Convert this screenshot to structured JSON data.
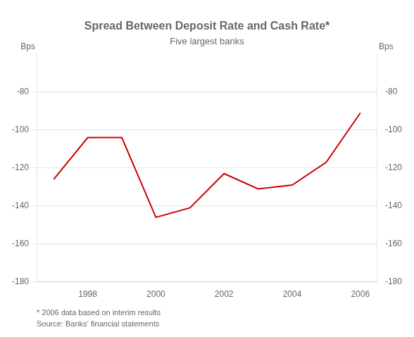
{
  "chart_data": {
    "type": "line",
    "title": "Spread Between Deposit Rate and Cash Rate*",
    "subtitle": "Five largest banks",
    "ylabel": "Bps",
    "y2label": "Bps",
    "annotations": [
      "* 2006 data based on interim results",
      "Source: Banks’ financial statements"
    ],
    "x": [
      1997,
      1998,
      1999,
      2000,
      2001,
      2002,
      2003,
      2004,
      2005,
      2006
    ],
    "values": [
      -126,
      -104,
      -104,
      -146,
      -141,
      -123,
      -131,
      -129,
      -117,
      -91
    ],
    "color": "#cc0000",
    "xlim": [
      1996.5,
      2006.5
    ],
    "xticks": [
      1998,
      2000,
      2002,
      2004,
      2006
    ],
    "ylim": [
      -180,
      -60
    ],
    "yticks": [
      -180,
      -160,
      -140,
      -120,
      -100,
      -80
    ],
    "y2lim": [
      -180,
      -60
    ],
    "y2ticks": [
      -180,
      -160,
      -140,
      -120,
      -100,
      -80
    ],
    "grid": "y"
  }
}
